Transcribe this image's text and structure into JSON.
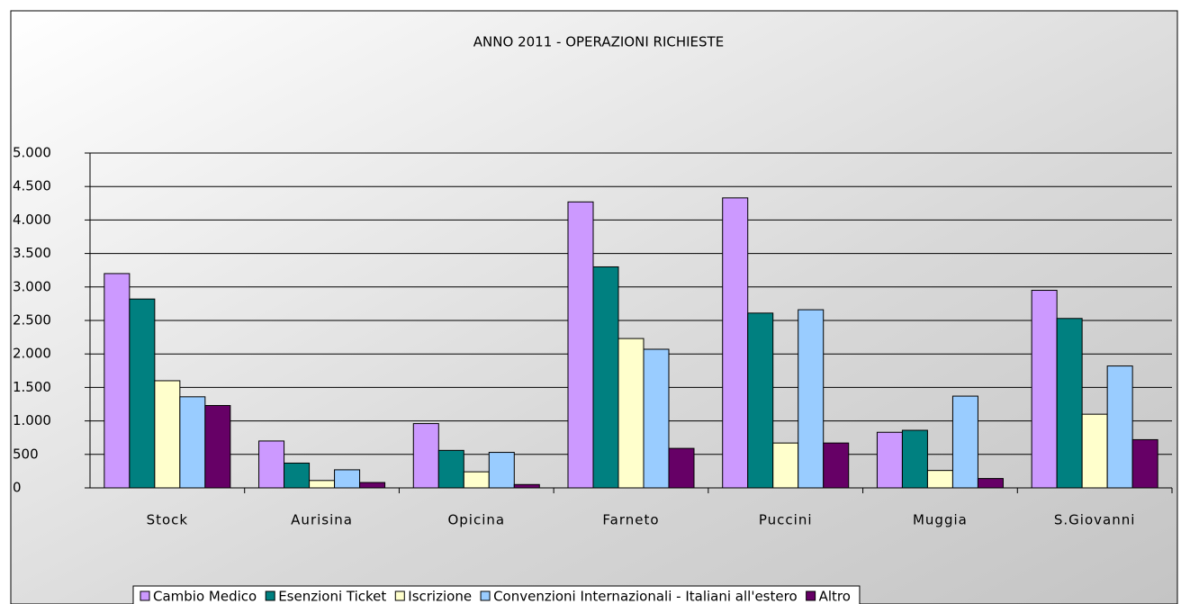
{
  "chart_data": {
    "type": "bar",
    "title": "ANNO 2011 - OPERAZIONI RICHIESTE",
    "categories": [
      "Stock",
      "Aurisina",
      "Opicina",
      "Farneto",
      "Puccini",
      "Muggia",
      "S.Giovanni"
    ],
    "series": [
      {
        "name": "Cambio Medico",
        "color": "#cc99ff",
        "values": [
          3200,
          700,
          960,
          4270,
          4330,
          830,
          2950
        ]
      },
      {
        "name": "Esenzioni Ticket",
        "color": "#008080",
        "values": [
          2820,
          370,
          560,
          3300,
          2610,
          860,
          2530
        ]
      },
      {
        "name": "Iscrizione",
        "color": "#ffffcc",
        "values": [
          1600,
          110,
          240,
          2230,
          670,
          260,
          1100
        ]
      },
      {
        "name": "Convenzioni Internazionali - Italiani all'estero",
        "color": "#99ccff",
        "values": [
          1360,
          270,
          530,
          2070,
          2660,
          1370,
          1820
        ]
      },
      {
        "name": "Altro",
        "color": "#660066",
        "values": [
          1230,
          80,
          50,
          590,
          670,
          140,
          720
        ]
      }
    ],
    "ylim": [
      0,
      5000
    ],
    "yticks": [
      0,
      500,
      {
        "value": 1000,
        "label": "1.000"
      },
      {
        "value": 1500,
        "label": "1.500"
      },
      {
        "value": 2000,
        "label": "2.000"
      },
      {
        "value": 2500,
        "label": "2.500"
      },
      {
        "value": 3000,
        "label": "3.000"
      },
      {
        "value": 3500,
        "label": "3.500"
      },
      {
        "value": 4000,
        "label": "4.000"
      },
      {
        "value": 4500,
        "label": "4.500"
      },
      {
        "value": 5000,
        "label": "5.000"
      }
    ],
    "grid": true,
    "legend": "bottom"
  }
}
